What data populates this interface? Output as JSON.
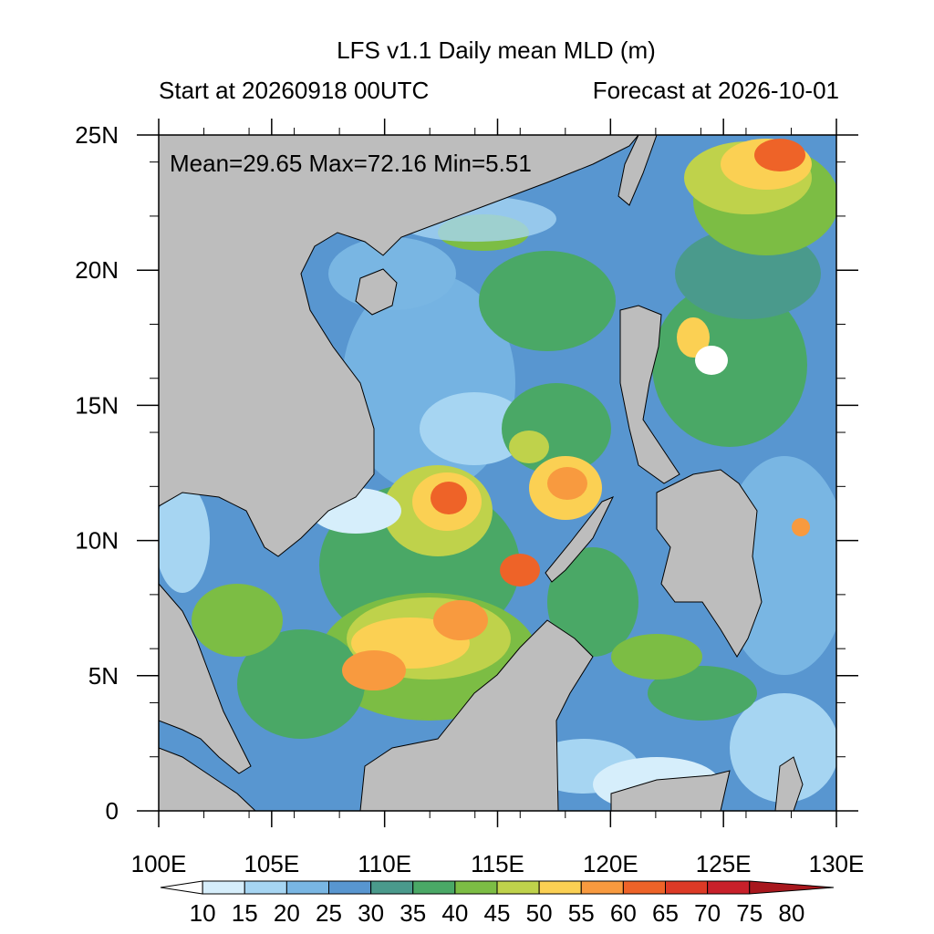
{
  "title": "LFS v1.1 Daily mean MLD (m)",
  "subtitle_left": "Start at 20260918 00UTC",
  "subtitle_right": "Forecast at 2026-10-01",
  "stats": "Mean=29.65  Max=72.16  Min=5.51",
  "map": {
    "lon_range": [
      100,
      130
    ],
    "lat_range": [
      0,
      25
    ],
    "lon_ticks": [
      "100E",
      "105E",
      "110E",
      "115E",
      "120E",
      "125E",
      "130E"
    ],
    "lat_ticks": [
      "0",
      "5N",
      "10N",
      "15N",
      "20N",
      "25N"
    ],
    "land_color": "#bdbdbd"
  },
  "colorbar": {
    "labels": [
      "10",
      "15",
      "20",
      "25",
      "30",
      "35",
      "40",
      "45",
      "50",
      "55",
      "60",
      "65",
      "70",
      "75",
      "80"
    ],
    "colors": [
      "#ffffff",
      "#d6eefb",
      "#a6d5f2",
      "#79b6e3",
      "#5896d0",
      "#4a9a8c",
      "#4aa866",
      "#7cbd44",
      "#bfd24b",
      "#fbd053",
      "#f89a3f",
      "#ee6328",
      "#dd3a26",
      "#c8202a",
      "#a8171d"
    ]
  }
}
